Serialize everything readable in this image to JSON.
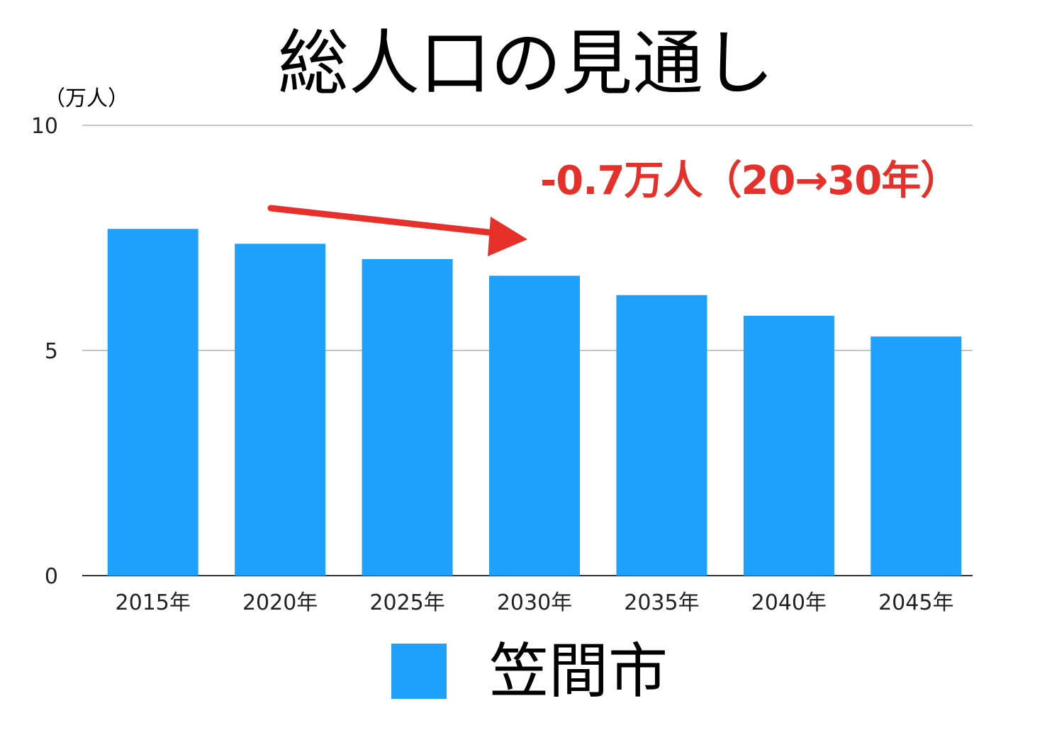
{
  "chart_data": {
    "type": "bar",
    "title": "総人口の見通し",
    "ylabel": "（万人）",
    "categories": [
      "2015年",
      "2020年",
      "2025年",
      "2030年",
      "2035年",
      "2040年",
      "2045年"
    ],
    "series": [
      {
        "name": "笠間市",
        "values": [
          7.7,
          7.37,
          7.03,
          6.66,
          6.23,
          5.77,
          5.31
        ],
        "color": "#1da1fb"
      }
    ],
    "ylim": [
      0,
      10
    ],
    "yticks": [
      0,
      5,
      10
    ],
    "grid": true,
    "legend_position": "bottom",
    "annotation": {
      "text": "-0.7万人（20→30年）",
      "color": "#e8302a"
    }
  }
}
